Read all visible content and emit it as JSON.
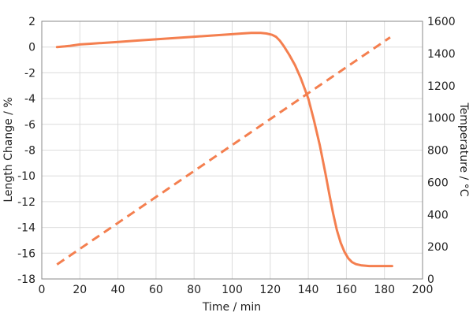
{
  "chart_data": {
    "type": "line",
    "xlabel": "Time / min",
    "ylabel_left": "Length Change / %",
    "ylabel_right": "Temperature / °C",
    "xlim": [
      0,
      200
    ],
    "ylim_left": [
      -18,
      2
    ],
    "ylim_right": [
      0,
      1600
    ],
    "xticks": [
      0,
      20,
      40,
      60,
      80,
      100,
      120,
      140,
      160,
      180,
      200
    ],
    "yticks_left": [
      2,
      0,
      -2,
      -4,
      -6,
      -8,
      -10,
      -12,
      -14,
      -16,
      -18
    ],
    "yticks_right": [
      1600,
      1400,
      1200,
      1000,
      800,
      600,
      400,
      200,
      0
    ],
    "grid": true,
    "line_color": "#f47f4f",
    "series": [
      {
        "axis": "left",
        "style": "solid",
        "x": [
          8,
          12,
          15,
          20,
          25,
          30,
          40,
          50,
          60,
          70,
          80,
          90,
          100,
          105,
          110,
          115,
          118,
          121,
          123,
          125,
          127,
          130,
          133,
          136,
          140,
          143,
          146,
          149,
          151,
          153,
          155,
          157,
          159,
          161,
          163,
          165,
          168,
          172,
          176,
          180,
          184
        ],
        "y": [
          0.0,
          0.05,
          0.1,
          0.2,
          0.25,
          0.3,
          0.4,
          0.5,
          0.6,
          0.7,
          0.8,
          0.9,
          1.0,
          1.05,
          1.1,
          1.1,
          1.05,
          0.95,
          0.8,
          0.5,
          0.1,
          -0.6,
          -1.4,
          -2.4,
          -4.0,
          -5.7,
          -7.6,
          -9.8,
          -11.4,
          -12.9,
          -14.2,
          -15.2,
          -15.9,
          -16.4,
          -16.7,
          -16.85,
          -16.95,
          -17.0,
          -17.0,
          -17.0,
          -17.0
        ]
      },
      {
        "axis": "right",
        "style": "dashed",
        "x": [
          8,
          183
        ],
        "y": [
          90,
          1500
        ]
      }
    ]
  }
}
